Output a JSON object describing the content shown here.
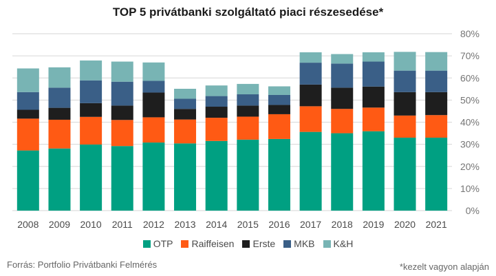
{
  "title": "TOP 5 privátbanki szolgáltató piaci részesedése*",
  "source": "Forrás: Portfolio Privátbanki Felmérés",
  "note": "*kezelt vagyon alapján",
  "chart_data": {
    "type": "bar",
    "stacked": true,
    "title": "TOP 5 privátbanki szolgáltató piaci részesedése*",
    "categories": [
      "2008",
      "2009",
      "2010",
      "2011",
      "2012",
      "2013",
      "2014",
      "2015",
      "2016",
      "2017",
      "2018",
      "2019",
      "2020",
      "2021"
    ],
    "y_ticks": [
      "0%",
      "10%",
      "20%",
      "30%",
      "40%",
      "50%",
      "60%",
      "70%",
      "80%"
    ],
    "ylim": [
      0,
      80
    ],
    "y_axis_position": "right",
    "grid": true,
    "legend_position": "bottom",
    "series": [
      {
        "name": "OTP",
        "color": "#00a082",
        "values": [
          27.2,
          28.1,
          29.9,
          29.2,
          30.8,
          30.4,
          31.5,
          32.1,
          32.4,
          35.6,
          35.0,
          35.9,
          33.0,
          33.0
        ]
      },
      {
        "name": "Raiffeisen",
        "color": "#ff5a14",
        "values": [
          14.4,
          13.0,
          12.5,
          11.8,
          11.4,
          10.8,
          10.5,
          10.4,
          11.2,
          11.6,
          11.0,
          10.7,
          10.0,
          10.2
        ]
      },
      {
        "name": "Erste",
        "color": "#1e1e1e",
        "values": [
          4.0,
          5.4,
          6.2,
          6.5,
          11.2,
          4.8,
          5.0,
          5.0,
          4.2,
          9.8,
          9.6,
          9.5,
          10.6,
          10.4
        ]
      },
      {
        "name": "MKB",
        "color": "#3a5f87",
        "values": [
          8.0,
          9.1,
          10.3,
          10.8,
          5.3,
          4.6,
          4.8,
          5.1,
          4.5,
          9.9,
          10.9,
          11.3,
          9.7,
          9.7
        ]
      },
      {
        "name": "K&H",
        "color": "#78b4b4",
        "values": [
          10.7,
          9.2,
          9.0,
          9.1,
          8.3,
          4.5,
          4.8,
          4.7,
          3.9,
          4.7,
          4.3,
          4.2,
          8.5,
          8.4
        ]
      }
    ]
  }
}
